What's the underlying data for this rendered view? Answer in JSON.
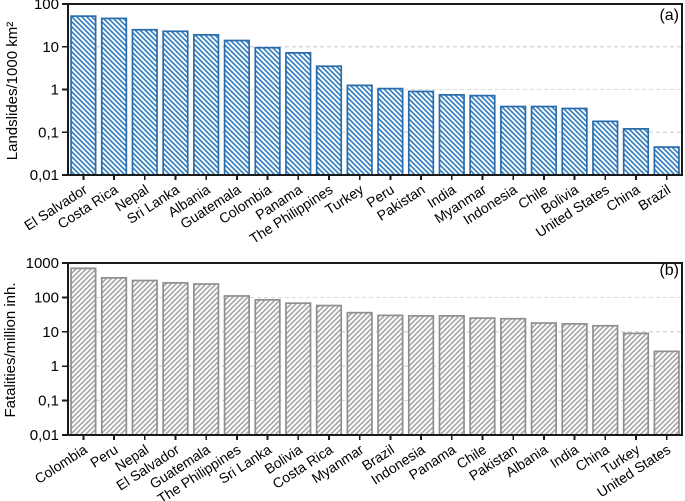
{
  "figure": {
    "background": "#ffffff",
    "axis_color": "#1a1a1a",
    "gridline_color": "#d9d9d9"
  },
  "chart_data": [
    {
      "type": "bar",
      "panel_label": "(a)",
      "ylabel": "Landslides/1000 km²",
      "yscale": "log",
      "ylim": [
        0.01,
        100
      ],
      "yticks": [
        {
          "label": "100",
          "value": 100
        },
        {
          "label": "10",
          "value": 10
        },
        {
          "label": "1",
          "value": 1
        },
        {
          "label": "0,1",
          "value": 0.1
        },
        {
          "label": "0,01",
          "value": 0.01
        }
      ],
      "grid": "horizontal dashed lines at decades",
      "legend": "none",
      "bar_color": "#2a6cab",
      "hatch_color": "#3b82c2",
      "hatch": "backslash",
      "categories": [
        "El Salvador",
        "Costa Rica",
        "Nepal",
        "Sri Lanka",
        "Albania",
        "Guatemala",
        "Colombia",
        "Panama",
        "The Philippines",
        "Turkey",
        "Peru",
        "Pakistan",
        "India",
        "Myanmar",
        "Indonesia",
        "Chile",
        "Bolivia",
        "United States",
        "China",
        "Brazil"
      ],
      "values": [
        52,
        46,
        25,
        23,
        19,
        14,
        9.5,
        7.2,
        3.5,
        1.25,
        1.05,
        0.9,
        0.75,
        0.72,
        0.4,
        0.4,
        0.36,
        0.18,
        0.12,
        0.045
      ]
    },
    {
      "type": "bar",
      "panel_label": "(b)",
      "ylabel": "Fatalities/million inh.",
      "yscale": "log",
      "ylim": [
        0.01,
        1000
      ],
      "yticks": [
        {
          "label": "1000",
          "value": 1000
        },
        {
          "label": "100",
          "value": 100
        },
        {
          "label": "10",
          "value": 10
        },
        {
          "label": "1",
          "value": 1
        },
        {
          "label": "0,1",
          "value": 0.1
        },
        {
          "label": "0,01",
          "value": 0.01
        }
      ],
      "grid": "horizontal dashed lines at decades",
      "legend": "none",
      "bar_color": "#8f8f8f",
      "hatch_color": "#a9a9a9",
      "hatch": "slash",
      "categories": [
        "Colombia",
        "Peru",
        "Nepal",
        "El Salvador",
        "Guatemala",
        "The Philippines",
        "Sri Lanka",
        "Bolivia",
        "Costa Rica",
        "Myanmar",
        "Brazil",
        "Indonesia",
        "Panama",
        "Chile",
        "Pakistan",
        "Albania",
        "India",
        "China",
        "Turkey",
        "United States"
      ],
      "values": [
        700,
        370,
        310,
        265,
        245,
        110,
        85,
        68,
        58,
        36,
        30,
        29,
        29,
        25,
        24,
        18,
        17,
        15,
        9,
        2.7
      ]
    }
  ]
}
